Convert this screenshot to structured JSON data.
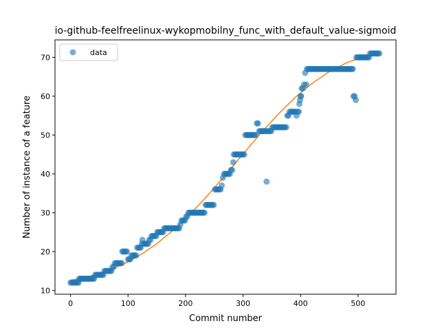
{
  "chart_data": {
    "type": "scatter",
    "title": "io-github-feelfreelinux-wykopmobilny_func_with_default_value-sigmoid",
    "xlabel": "Commit number",
    "ylabel": "Number of instance of a feature",
    "xlim": [
      -27,
      566
    ],
    "ylim": [
      9.0,
      74.5
    ],
    "xticks": [
      0,
      100,
      200,
      300,
      400,
      500
    ],
    "yticks": [
      10,
      20,
      30,
      40,
      50,
      60,
      70
    ],
    "grid": false,
    "legend_position": "top-left",
    "colors": {
      "data": "#1f77b4",
      "fit": "#ff7f0e"
    },
    "series": [
      {
        "name": "data",
        "kind": "points",
        "points": [
          [
            0,
            12
          ],
          [
            2,
            12
          ],
          [
            4,
            12
          ],
          [
            6,
            12
          ],
          [
            8,
            12
          ],
          [
            10,
            12
          ],
          [
            12,
            12
          ],
          [
            14,
            12
          ],
          [
            15,
            13
          ],
          [
            17,
            13
          ],
          [
            19,
            13
          ],
          [
            21,
            13
          ],
          [
            23,
            13
          ],
          [
            25,
            13
          ],
          [
            27,
            13
          ],
          [
            29,
            13
          ],
          [
            31,
            13
          ],
          [
            33,
            13
          ],
          [
            35,
            13
          ],
          [
            37,
            13
          ],
          [
            39,
            13
          ],
          [
            41,
            13
          ],
          [
            43,
            14
          ],
          [
            45,
            14
          ],
          [
            47,
            14
          ],
          [
            49,
            14
          ],
          [
            51,
            14
          ],
          [
            53,
            14
          ],
          [
            55,
            14
          ],
          [
            57,
            14
          ],
          [
            59,
            15
          ],
          [
            61,
            15
          ],
          [
            63,
            15
          ],
          [
            65,
            15
          ],
          [
            67,
            15
          ],
          [
            69,
            15
          ],
          [
            71,
            15
          ],
          [
            73,
            16
          ],
          [
            75,
            16
          ],
          [
            77,
            17
          ],
          [
            79,
            17
          ],
          [
            81,
            17
          ],
          [
            83,
            17
          ],
          [
            85,
            17
          ],
          [
            87,
            17
          ],
          [
            89,
            17
          ],
          [
            90,
            20
          ],
          [
            92,
            20
          ],
          [
            94,
            20
          ],
          [
            96,
            20
          ],
          [
            98,
            20
          ],
          [
            100,
            18
          ],
          [
            102,
            18
          ],
          [
            104,
            18
          ],
          [
            106,
            19
          ],
          [
            108,
            19
          ],
          [
            110,
            19
          ],
          [
            112,
            19
          ],
          [
            114,
            19
          ],
          [
            116,
            21
          ],
          [
            118,
            21
          ],
          [
            120,
            21
          ],
          [
            122,
            21
          ],
          [
            124,
            22
          ],
          [
            125,
            23
          ],
          [
            127,
            22
          ],
          [
            129,
            22
          ],
          [
            131,
            22
          ],
          [
            133,
            22
          ],
          [
            135,
            22
          ],
          [
            137,
            23
          ],
          [
            139,
            23
          ],
          [
            141,
            24
          ],
          [
            143,
            24
          ],
          [
            145,
            24
          ],
          [
            147,
            24
          ],
          [
            149,
            24
          ],
          [
            151,
            25
          ],
          [
            153,
            25
          ],
          [
            155,
            25
          ],
          [
            157,
            25
          ],
          [
            159,
            25
          ],
          [
            161,
            25
          ],
          [
            163,
            26
          ],
          [
            165,
            26
          ],
          [
            167,
            26
          ],
          [
            169,
            26
          ],
          [
            171,
            26
          ],
          [
            173,
            26
          ],
          [
            175,
            26
          ],
          [
            177,
            26
          ],
          [
            179,
            26
          ],
          [
            181,
            26
          ],
          [
            183,
            26
          ],
          [
            185,
            26
          ],
          [
            187,
            26
          ],
          [
            189,
            26
          ],
          [
            191,
            27
          ],
          [
            193,
            28
          ],
          [
            195,
            28
          ],
          [
            197,
            28
          ],
          [
            199,
            28
          ],
          [
            201,
            29
          ],
          [
            203,
            29
          ],
          [
            205,
            30
          ],
          [
            207,
            30
          ],
          [
            209,
            30
          ],
          [
            211,
            30
          ],
          [
            213,
            30
          ],
          [
            215,
            30
          ],
          [
            217,
            30
          ],
          [
            219,
            30
          ],
          [
            221,
            30
          ],
          [
            223,
            30
          ],
          [
            225,
            30
          ],
          [
            227,
            30
          ],
          [
            229,
            30
          ],
          [
            231,
            30
          ],
          [
            233,
            30
          ],
          [
            235,
            32
          ],
          [
            237,
            32
          ],
          [
            239,
            32
          ],
          [
            241,
            32
          ],
          [
            243,
            32
          ],
          [
            245,
            32
          ],
          [
            247,
            32
          ],
          [
            249,
            32
          ],
          [
            251,
            36
          ],
          [
            253,
            36
          ],
          [
            255,
            36
          ],
          [
            257,
            36
          ],
          [
            259,
            36
          ],
          [
            261,
            36
          ],
          [
            263,
            37
          ],
          [
            265,
            39
          ],
          [
            267,
            40
          ],
          [
            269,
            40
          ],
          [
            271,
            40
          ],
          [
            273,
            40
          ],
          [
            275,
            40
          ],
          [
            277,
            40
          ],
          [
            279,
            41
          ],
          [
            281,
            41
          ],
          [
            283,
            43
          ],
          [
            284,
            45
          ],
          [
            286,
            45
          ],
          [
            288,
            45
          ],
          [
            290,
            45
          ],
          [
            292,
            45
          ],
          [
            294,
            45
          ],
          [
            296,
            45
          ],
          [
            298,
            45
          ],
          [
            300,
            45
          ],
          [
            302,
            45
          ],
          [
            304,
            50
          ],
          [
            306,
            50
          ],
          [
            308,
            50
          ],
          [
            310,
            50
          ],
          [
            312,
            50
          ],
          [
            314,
            50
          ],
          [
            316,
            50
          ],
          [
            318,
            50
          ],
          [
            320,
            50
          ],
          [
            322,
            50
          ],
          [
            324,
            53
          ],
          [
            326,
            53
          ],
          [
            328,
            51
          ],
          [
            330,
            51
          ],
          [
            332,
            51
          ],
          [
            334,
            51
          ],
          [
            336,
            51
          ],
          [
            338,
            51
          ],
          [
            340,
            51
          ],
          [
            341,
            38
          ],
          [
            343,
            51
          ],
          [
            345,
            51
          ],
          [
            347,
            51
          ],
          [
            349,
            51
          ],
          [
            351,
            52
          ],
          [
            353,
            52
          ],
          [
            355,
            52
          ],
          [
            357,
            52
          ],
          [
            359,
            52
          ],
          [
            361,
            52
          ],
          [
            363,
            52
          ],
          [
            365,
            52
          ],
          [
            367,
            52
          ],
          [
            369,
            52
          ],
          [
            371,
            52
          ],
          [
            373,
            52
          ],
          [
            375,
            52
          ],
          [
            377,
            55
          ],
          [
            379,
            55
          ],
          [
            381,
            56
          ],
          [
            383,
            56
          ],
          [
            385,
            56
          ],
          [
            387,
            56
          ],
          [
            389,
            56
          ],
          [
            391,
            56
          ],
          [
            393,
            55
          ],
          [
            395,
            56
          ],
          [
            397,
            56
          ],
          [
            398,
            58
          ],
          [
            399,
            59
          ],
          [
            400,
            60
          ],
          [
            401,
            60
          ],
          [
            402,
            62
          ],
          [
            404,
            62
          ],
          [
            406,
            63
          ],
          [
            408,
            66
          ],
          [
            410,
            63
          ],
          [
            411,
            67
          ],
          [
            413,
            67
          ],
          [
            415,
            67
          ],
          [
            417,
            67
          ],
          [
            419,
            67
          ],
          [
            421,
            67
          ],
          [
            423,
            67
          ],
          [
            425,
            67
          ],
          [
            427,
            67
          ],
          [
            429,
            67
          ],
          [
            431,
            67
          ],
          [
            433,
            67
          ],
          [
            435,
            67
          ],
          [
            437,
            67
          ],
          [
            439,
            67
          ],
          [
            441,
            67
          ],
          [
            443,
            67
          ],
          [
            445,
            67
          ],
          [
            447,
            67
          ],
          [
            449,
            67
          ],
          [
            451,
            67
          ],
          [
            453,
            67
          ],
          [
            455,
            67
          ],
          [
            457,
            67
          ],
          [
            459,
            67
          ],
          [
            461,
            67
          ],
          [
            463,
            67
          ],
          [
            465,
            67
          ],
          [
            467,
            67
          ],
          [
            469,
            67
          ],
          [
            471,
            67
          ],
          [
            473,
            67
          ],
          [
            475,
            67
          ],
          [
            477,
            67
          ],
          [
            479,
            67
          ],
          [
            481,
            67
          ],
          [
            483,
            67
          ],
          [
            485,
            67
          ],
          [
            487,
            67
          ],
          [
            489,
            67
          ],
          [
            491,
            67
          ],
          [
            492,
            60
          ],
          [
            494,
            60
          ],
          [
            496,
            59
          ],
          [
            497,
            70
          ],
          [
            499,
            70
          ],
          [
            501,
            70
          ],
          [
            503,
            70
          ],
          [
            505,
            70
          ],
          [
            507,
            70
          ],
          [
            509,
            70
          ],
          [
            511,
            70
          ],
          [
            513,
            70
          ],
          [
            515,
            70
          ],
          [
            517,
            70
          ],
          [
            519,
            70
          ],
          [
            521,
            71
          ],
          [
            523,
            71
          ],
          [
            525,
            71
          ],
          [
            527,
            71
          ],
          [
            529,
            71
          ],
          [
            531,
            71
          ],
          [
            533,
            71
          ],
          [
            535,
            71
          ],
          [
            537,
            71
          ]
        ]
      },
      {
        "kind": "curve",
        "points": [
          [
            0,
            12.6
          ],
          [
            30,
            13.5
          ],
          [
            60,
            14.8
          ],
          [
            90,
            16.6
          ],
          [
            120,
            19.0
          ],
          [
            150,
            22.0
          ],
          [
            180,
            25.7
          ],
          [
            210,
            29.9
          ],
          [
            240,
            34.7
          ],
          [
            270,
            39.8
          ],
          [
            300,
            45.1
          ],
          [
            330,
            50.3
          ],
          [
            360,
            55.2
          ],
          [
            390,
            59.6
          ],
          [
            420,
            63.3
          ],
          [
            450,
            66.3
          ],
          [
            480,
            68.6
          ],
          [
            510,
            70.2
          ],
          [
            538,
            71.3
          ]
        ]
      }
    ]
  }
}
